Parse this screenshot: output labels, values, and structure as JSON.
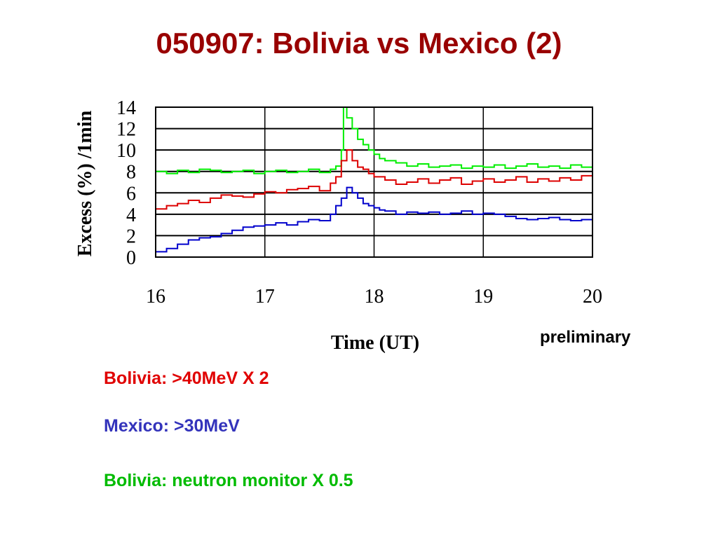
{
  "slide": {
    "title": "050907: Bolivia vs Mexico (2)",
    "note": "preliminary"
  },
  "legend": [
    {
      "text": "Bolivia: >40MeV X 2",
      "color": "#e00000"
    },
    {
      "text": "Mexico: >30MeV",
      "color": "#3333bb"
    },
    {
      "text": "Bolivia: neutron monitor X 0.5",
      "color": "#00bb00"
    }
  ],
  "chart_data": {
    "type": "line",
    "xlabel": "Time (UT)",
    "ylabel": "Excess (%) /1min",
    "xlim": [
      16,
      20
    ],
    "ylim": [
      0,
      14
    ],
    "xticks": [
      16,
      17,
      18,
      19,
      20
    ],
    "yticks": [
      0,
      2,
      4,
      6,
      8,
      10,
      12,
      14
    ],
    "grid": true,
    "step": true,
    "series": [
      {
        "color": "#00ee00",
        "x": [
          16.0,
          16.1,
          16.2,
          16.3,
          16.4,
          16.5,
          16.6,
          16.7,
          16.8,
          16.9,
          17.0,
          17.1,
          17.2,
          17.3,
          17.4,
          17.5,
          17.6,
          17.65,
          17.7,
          17.72,
          17.75,
          17.8,
          17.85,
          17.9,
          17.95,
          18.0,
          18.05,
          18.1,
          18.2,
          18.3,
          18.4,
          18.5,
          18.6,
          18.7,
          18.8,
          18.9,
          19.0,
          19.1,
          19.2,
          19.3,
          19.4,
          19.5,
          19.6,
          19.7,
          19.8,
          19.9,
          20.0
        ],
        "y": [
          8.0,
          7.8,
          8.1,
          7.9,
          8.2,
          8.1,
          7.9,
          8.0,
          8.1,
          7.8,
          8.0,
          8.1,
          7.9,
          8.0,
          8.2,
          7.9,
          8.2,
          8.5,
          10.0,
          14.0,
          13.0,
          12.0,
          11.0,
          10.5,
          10.0,
          9.6,
          9.2,
          9.0,
          8.8,
          8.5,
          8.7,
          8.4,
          8.5,
          8.6,
          8.3,
          8.5,
          8.4,
          8.6,
          8.3,
          8.5,
          8.7,
          8.4,
          8.5,
          8.3,
          8.6,
          8.4,
          8.5
        ]
      },
      {
        "color": "#dd0000",
        "x": [
          16.0,
          16.1,
          16.2,
          16.3,
          16.4,
          16.5,
          16.6,
          16.7,
          16.8,
          16.9,
          17.0,
          17.1,
          17.2,
          17.3,
          17.4,
          17.5,
          17.6,
          17.65,
          17.7,
          17.75,
          17.8,
          17.85,
          17.9,
          17.95,
          18.0,
          18.1,
          18.2,
          18.3,
          18.4,
          18.5,
          18.6,
          18.7,
          18.8,
          18.9,
          19.0,
          19.1,
          19.2,
          19.3,
          19.4,
          19.5,
          19.6,
          19.7,
          19.8,
          19.9,
          20.0
        ],
        "y": [
          4.5,
          4.8,
          5.0,
          5.3,
          5.1,
          5.5,
          5.8,
          5.7,
          5.6,
          5.9,
          6.1,
          6.0,
          6.3,
          6.4,
          6.6,
          6.2,
          6.9,
          7.5,
          9.0,
          10.0,
          9.0,
          8.4,
          8.2,
          7.8,
          7.5,
          7.2,
          6.8,
          7.0,
          7.3,
          6.9,
          7.2,
          7.4,
          6.8,
          7.1,
          7.3,
          7.0,
          7.2,
          7.5,
          7.0,
          7.3,
          7.1,
          7.4,
          7.2,
          7.6,
          7.8
        ]
      },
      {
        "color": "#0000cc",
        "x": [
          16.0,
          16.1,
          16.2,
          16.3,
          16.4,
          16.5,
          16.6,
          16.7,
          16.8,
          16.9,
          17.0,
          17.1,
          17.2,
          17.3,
          17.4,
          17.5,
          17.6,
          17.65,
          17.7,
          17.75,
          17.8,
          17.85,
          17.9,
          17.95,
          18.0,
          18.05,
          18.1,
          18.2,
          18.3,
          18.4,
          18.5,
          18.6,
          18.7,
          18.8,
          18.9,
          19.0,
          19.1,
          19.2,
          19.3,
          19.4,
          19.5,
          19.6,
          19.7,
          19.8,
          19.9,
          20.0
        ],
        "y": [
          0.5,
          0.8,
          1.2,
          1.6,
          1.8,
          1.9,
          2.2,
          2.5,
          2.8,
          2.9,
          3.0,
          3.2,
          3.0,
          3.3,
          3.5,
          3.4,
          4.0,
          4.8,
          5.5,
          6.5,
          6.0,
          5.5,
          5.0,
          4.8,
          4.6,
          4.4,
          4.3,
          4.0,
          4.2,
          4.1,
          4.2,
          4.0,
          4.1,
          4.3,
          4.0,
          4.1,
          4.0,
          3.8,
          3.6,
          3.5,
          3.6,
          3.7,
          3.5,
          3.4,
          3.5,
          3.2
        ]
      }
    ]
  }
}
